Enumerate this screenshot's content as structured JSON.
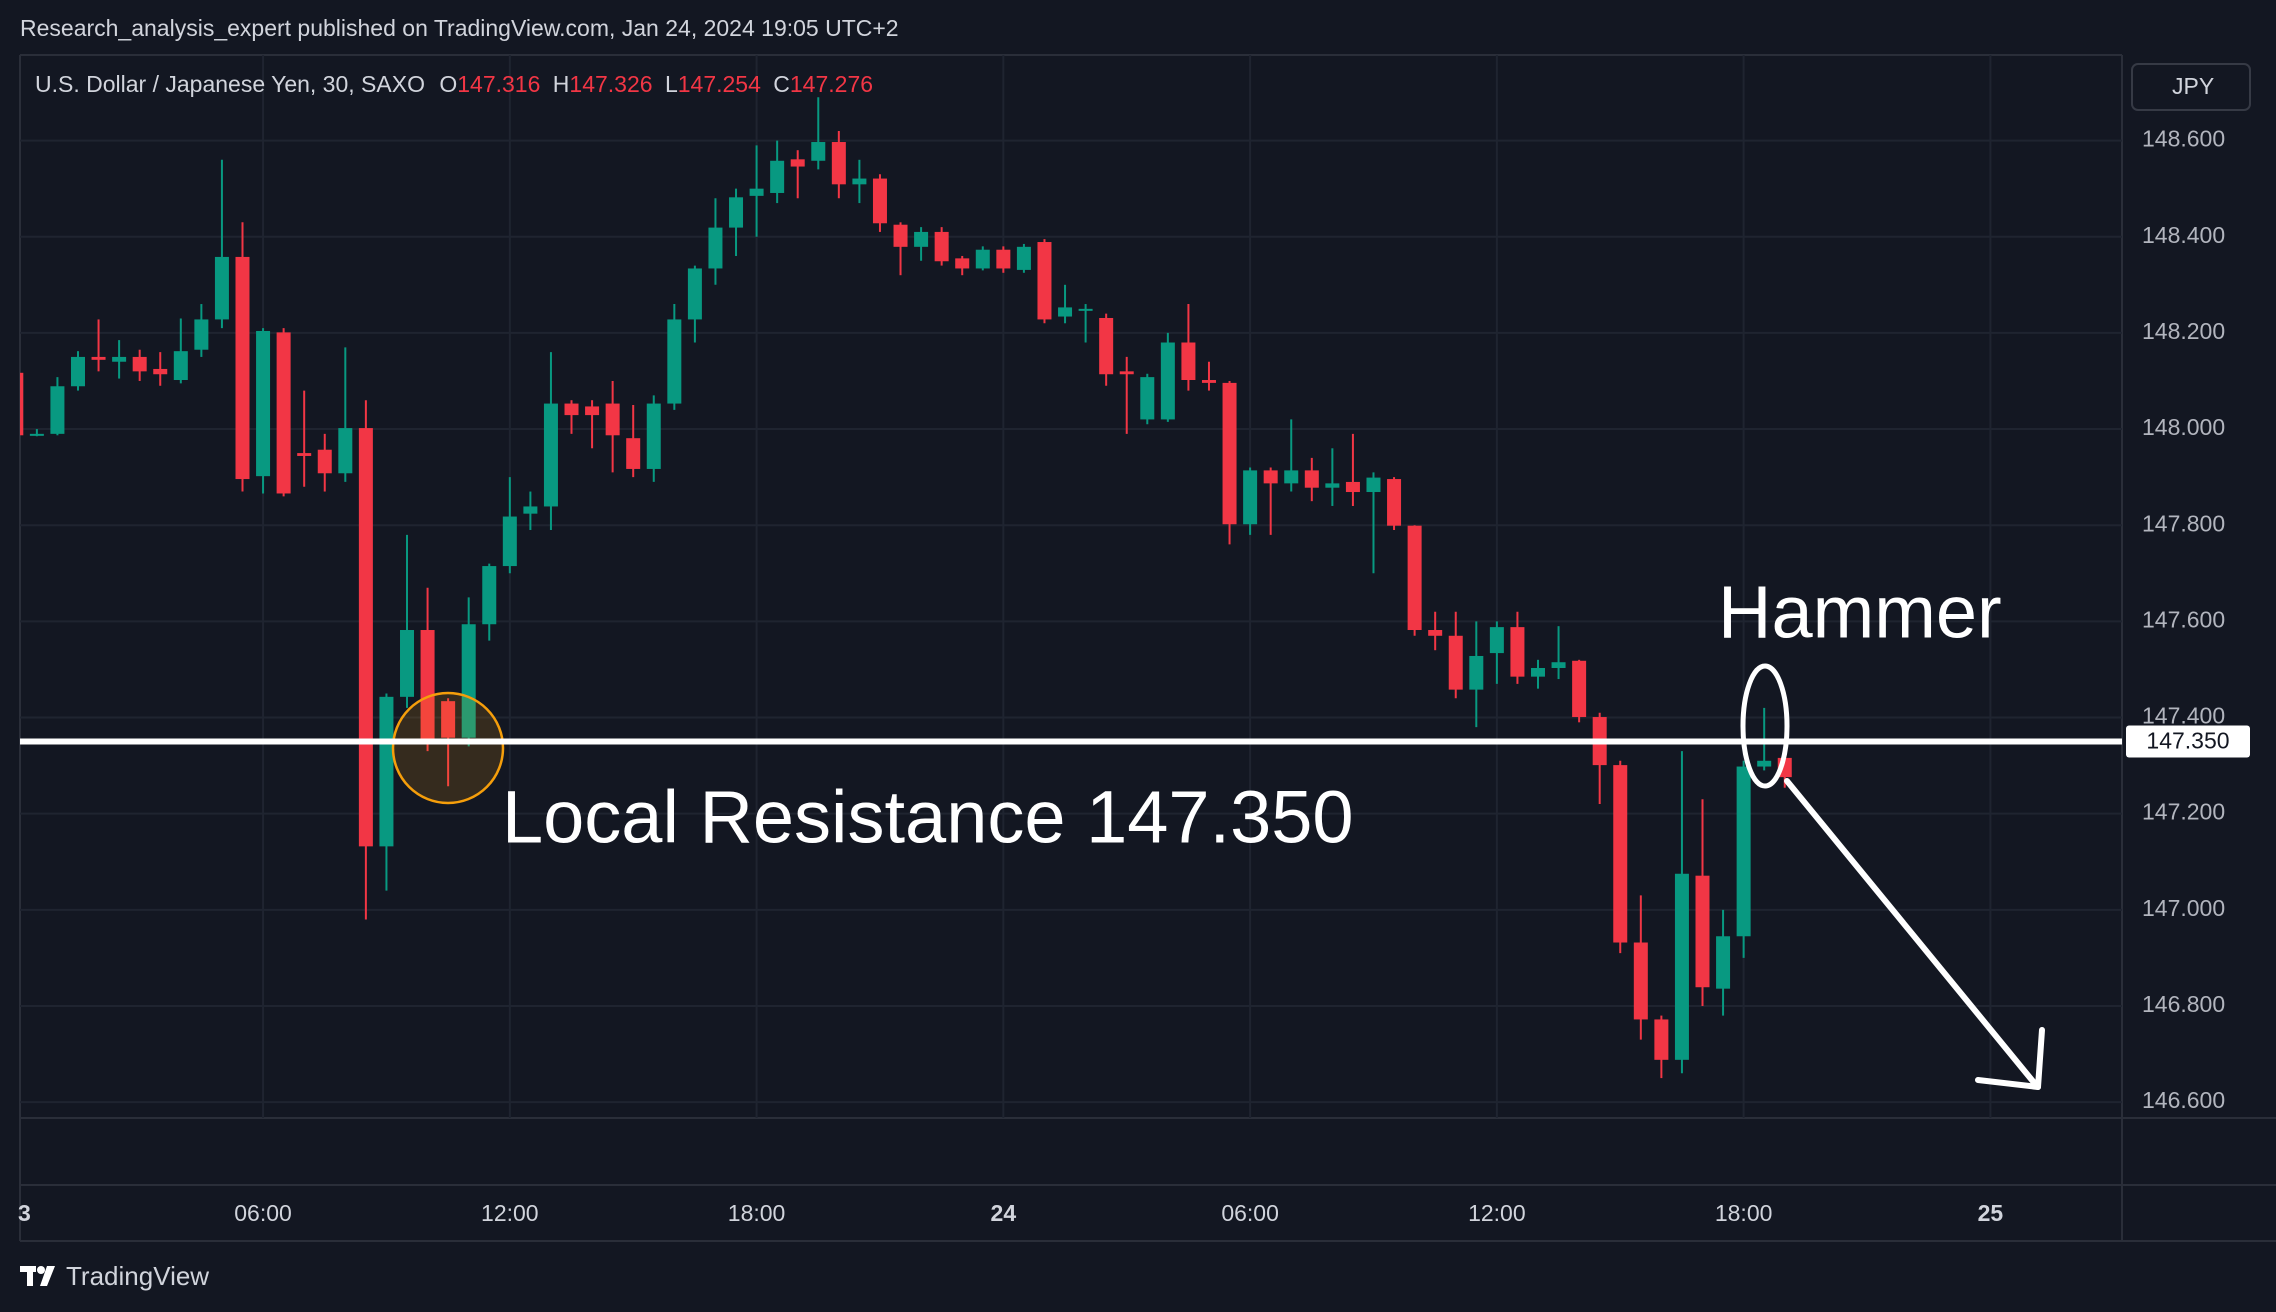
{
  "attribution": "Research_analysis_expert published on TradingView.com, Jan 24, 2024 19:05 UTC+2",
  "chart_data": {
    "type": "candlestick",
    "title": "U.S. Dollar / Japanese Yen, 30, SAXO",
    "ohlc_letters": [
      "O",
      "H",
      "L",
      "C"
    ],
    "currency": "JPY",
    "x": [
      0,
      0.5,
      1,
      1.5,
      2,
      2.5,
      3,
      3.5,
      4,
      4.5,
      5,
      5.5,
      6,
      6.5,
      7,
      7.5,
      8,
      8.5,
      9,
      9.5,
      10,
      10.5,
      11,
      11.5,
      12,
      12.5,
      13,
      13.5,
      14,
      14.5,
      15,
      15.5,
      16,
      16.5,
      17,
      17.5,
      18,
      18.5,
      19,
      19.5,
      20,
      20.5,
      21,
      21.5,
      22,
      22.5,
      23,
      23.5,
      24,
      24.5,
      25,
      25.5,
      26,
      26.5,
      27,
      27.5,
      28,
      28.5,
      29,
      29.5,
      30,
      30.5,
      31,
      31.5,
      32,
      32.5,
      33,
      33.5,
      34,
      34.5,
      35,
      35.5,
      36,
      36.5,
      37,
      37.5,
      38,
      38.5,
      39,
      39.5,
      40,
      40.5,
      41,
      41.5,
      42,
      42.5,
      43
    ],
    "open": [
      148.117,
      147.987,
      147.99,
      148.089,
      148.15,
      148.14,
      148.15,
      148.125,
      148.102,
      148.165,
      148.228,
      148.358,
      147.902,
      148.201,
      147.95,
      147.957,
      147.908,
      148.002,
      147.132,
      147.443,
      147.582,
      147.434,
      147.358,
      147.594,
      147.715,
      147.824,
      147.839,
      148.053,
      148.047,
      148.053,
      147.981,
      147.917,
      148.053,
      148.228,
      148.334,
      148.419,
      148.485,
      148.491,
      148.561,
      148.558,
      148.597,
      148.509,
      148.521,
      148.425,
      148.379,
      148.41,
      148.355,
      148.334,
      148.373,
      148.331,
      148.389,
      148.234,
      148.248,
      148.231,
      148.12,
      148.02,
      148.02,
      148.18,
      148.102,
      148.096,
      147.802,
      147.914,
      147.887,
      147.914,
      147.878,
      147.89,
      147.869,
      147.896,
      147.799,
      147.582,
      147.57,
      147.458,
      147.534,
      147.588,
      147.485,
      147.503,
      147.518,
      147.401,
      147.301,
      146.932,
      146.772,
      146.688,
      147.071,
      146.836,
      146.945,
      147.298,
      147.316
    ],
    "high": [
      148.125,
      148.0,
      148.108,
      148.162,
      148.228,
      148.185,
      148.165,
      148.16,
      148.23,
      148.26,
      148.56,
      148.43,
      148.21,
      148.21,
      148.08,
      147.99,
      148.17,
      148.06,
      147.45,
      147.78,
      147.67,
      147.44,
      147.65,
      147.72,
      147.9,
      147.87,
      148.16,
      148.06,
      148.06,
      148.1,
      148.05,
      148.07,
      148.26,
      148.34,
      148.48,
      148.5,
      148.59,
      148.6,
      148.58,
      148.69,
      148.62,
      148.56,
      148.53,
      148.43,
      148.42,
      148.42,
      148.36,
      148.38,
      148.38,
      148.385,
      148.395,
      148.3,
      148.26,
      148.24,
      148.15,
      148.115,
      148.2,
      148.26,
      148.14,
      148.1,
      147.92,
      147.92,
      148.02,
      147.94,
      147.96,
      147.99,
      147.91,
      147.9,
      147.8,
      147.62,
      147.62,
      147.6,
      147.6,
      147.62,
      147.52,
      147.59,
      147.52,
      147.41,
      147.31,
      147.03,
      146.78,
      147.33,
      147.23,
      147.0,
      147.31,
      147.42,
      147.326
    ],
    "low": [
      147.98,
      147.985,
      147.987,
      148.08,
      148.12,
      148.105,
      148.1,
      148.09,
      148.095,
      148.15,
      148.21,
      147.87,
      147.866,
      147.86,
      147.88,
      147.87,
      147.89,
      146.98,
      147.04,
      147.42,
      147.33,
      147.257,
      147.34,
      147.56,
      147.7,
      147.79,
      147.79,
      147.99,
      147.96,
      147.91,
      147.9,
      147.89,
      148.04,
      148.18,
      148.3,
      148.36,
      148.4,
      148.47,
      148.48,
      148.54,
      148.48,
      148.47,
      148.41,
      148.32,
      148.35,
      148.34,
      148.32,
      148.33,
      148.325,
      148.325,
      148.22,
      148.22,
      148.18,
      148.09,
      147.99,
      148.01,
      148.015,
      148.08,
      148.08,
      147.76,
      147.78,
      147.78,
      147.87,
      147.85,
      147.84,
      147.84,
      147.7,
      147.79,
      147.57,
      147.54,
      147.44,
      147.38,
      147.47,
      147.47,
      147.46,
      147.48,
      147.39,
      147.22,
      146.91,
      146.73,
      146.65,
      146.66,
      146.8,
      146.78,
      146.9,
      147.29,
      147.254
    ],
    "close": [
      147.987,
      147.99,
      148.089,
      148.15,
      148.144,
      148.15,
      148.12,
      148.114,
      148.162,
      148.228,
      148.358,
      147.896,
      148.204,
      147.866,
      147.944,
      147.908,
      148.002,
      147.132,
      147.443,
      147.582,
      147.352,
      147.358,
      147.594,
      147.715,
      147.818,
      147.839,
      148.053,
      148.029,
      148.029,
      147.987,
      147.917,
      148.053,
      148.228,
      148.334,
      148.419,
      148.482,
      148.5,
      148.558,
      148.546,
      148.597,
      148.509,
      148.521,
      148.428,
      148.379,
      148.41,
      148.349,
      148.334,
      148.373,
      148.334,
      148.379,
      148.228,
      148.253,
      148.25,
      148.114,
      148.114,
      148.108,
      148.18,
      148.102,
      148.096,
      147.802,
      147.914,
      147.887,
      147.914,
      147.878,
      147.887,
      147.869,
      147.899,
      147.799,
      147.582,
      147.57,
      147.458,
      147.528,
      147.588,
      147.485,
      147.503,
      147.515,
      147.401,
      147.301,
      146.932,
      146.772,
      146.688,
      147.075,
      146.839,
      146.945,
      147.298,
      147.31,
      147.276
    ],
    "up_color": "#089981",
    "down_color": "#f23645",
    "xlim": [
      0.09,
      51.2
    ],
    "xticks": [
      {
        "value": 0,
        "label": "3"
      },
      {
        "value": 6,
        "label": "06:00"
      },
      {
        "value": 12,
        "label": "12:00"
      },
      {
        "value": 18,
        "label": "18:00"
      },
      {
        "value": 24,
        "label": "24"
      },
      {
        "value": 30,
        "label": "06:00"
      },
      {
        "value": 36,
        "label": "12:00"
      },
      {
        "value": 42,
        "label": "18:00"
      },
      {
        "value": 48,
        "label": "25"
      }
    ],
    "ylim": [
      146.567,
      148.778
    ],
    "yticks": [
      {
        "value": 146.6,
        "label": "146.600"
      },
      {
        "value": 146.8,
        "label": "146.800"
      },
      {
        "value": 147.0,
        "label": "147.000"
      },
      {
        "value": 147.2,
        "label": "147.200"
      },
      {
        "value": 147.4,
        "label": "147.400"
      },
      {
        "value": 147.6,
        "label": "147.600"
      },
      {
        "value": 147.8,
        "label": "147.800"
      },
      {
        "value": 148.0,
        "label": "148.000"
      },
      {
        "value": 148.2,
        "label": "148.200"
      },
      {
        "value": 148.4,
        "label": "148.400"
      },
      {
        "value": 148.6,
        "label": "148.600"
      }
    ],
    "grid": true,
    "resistance": {
      "value": 147.35,
      "label": "147.350",
      "annotation": "Local Resistance 147.350"
    },
    "pattern_annotation": "Hammer"
  },
  "footer": {
    "brand": "TradingView"
  }
}
